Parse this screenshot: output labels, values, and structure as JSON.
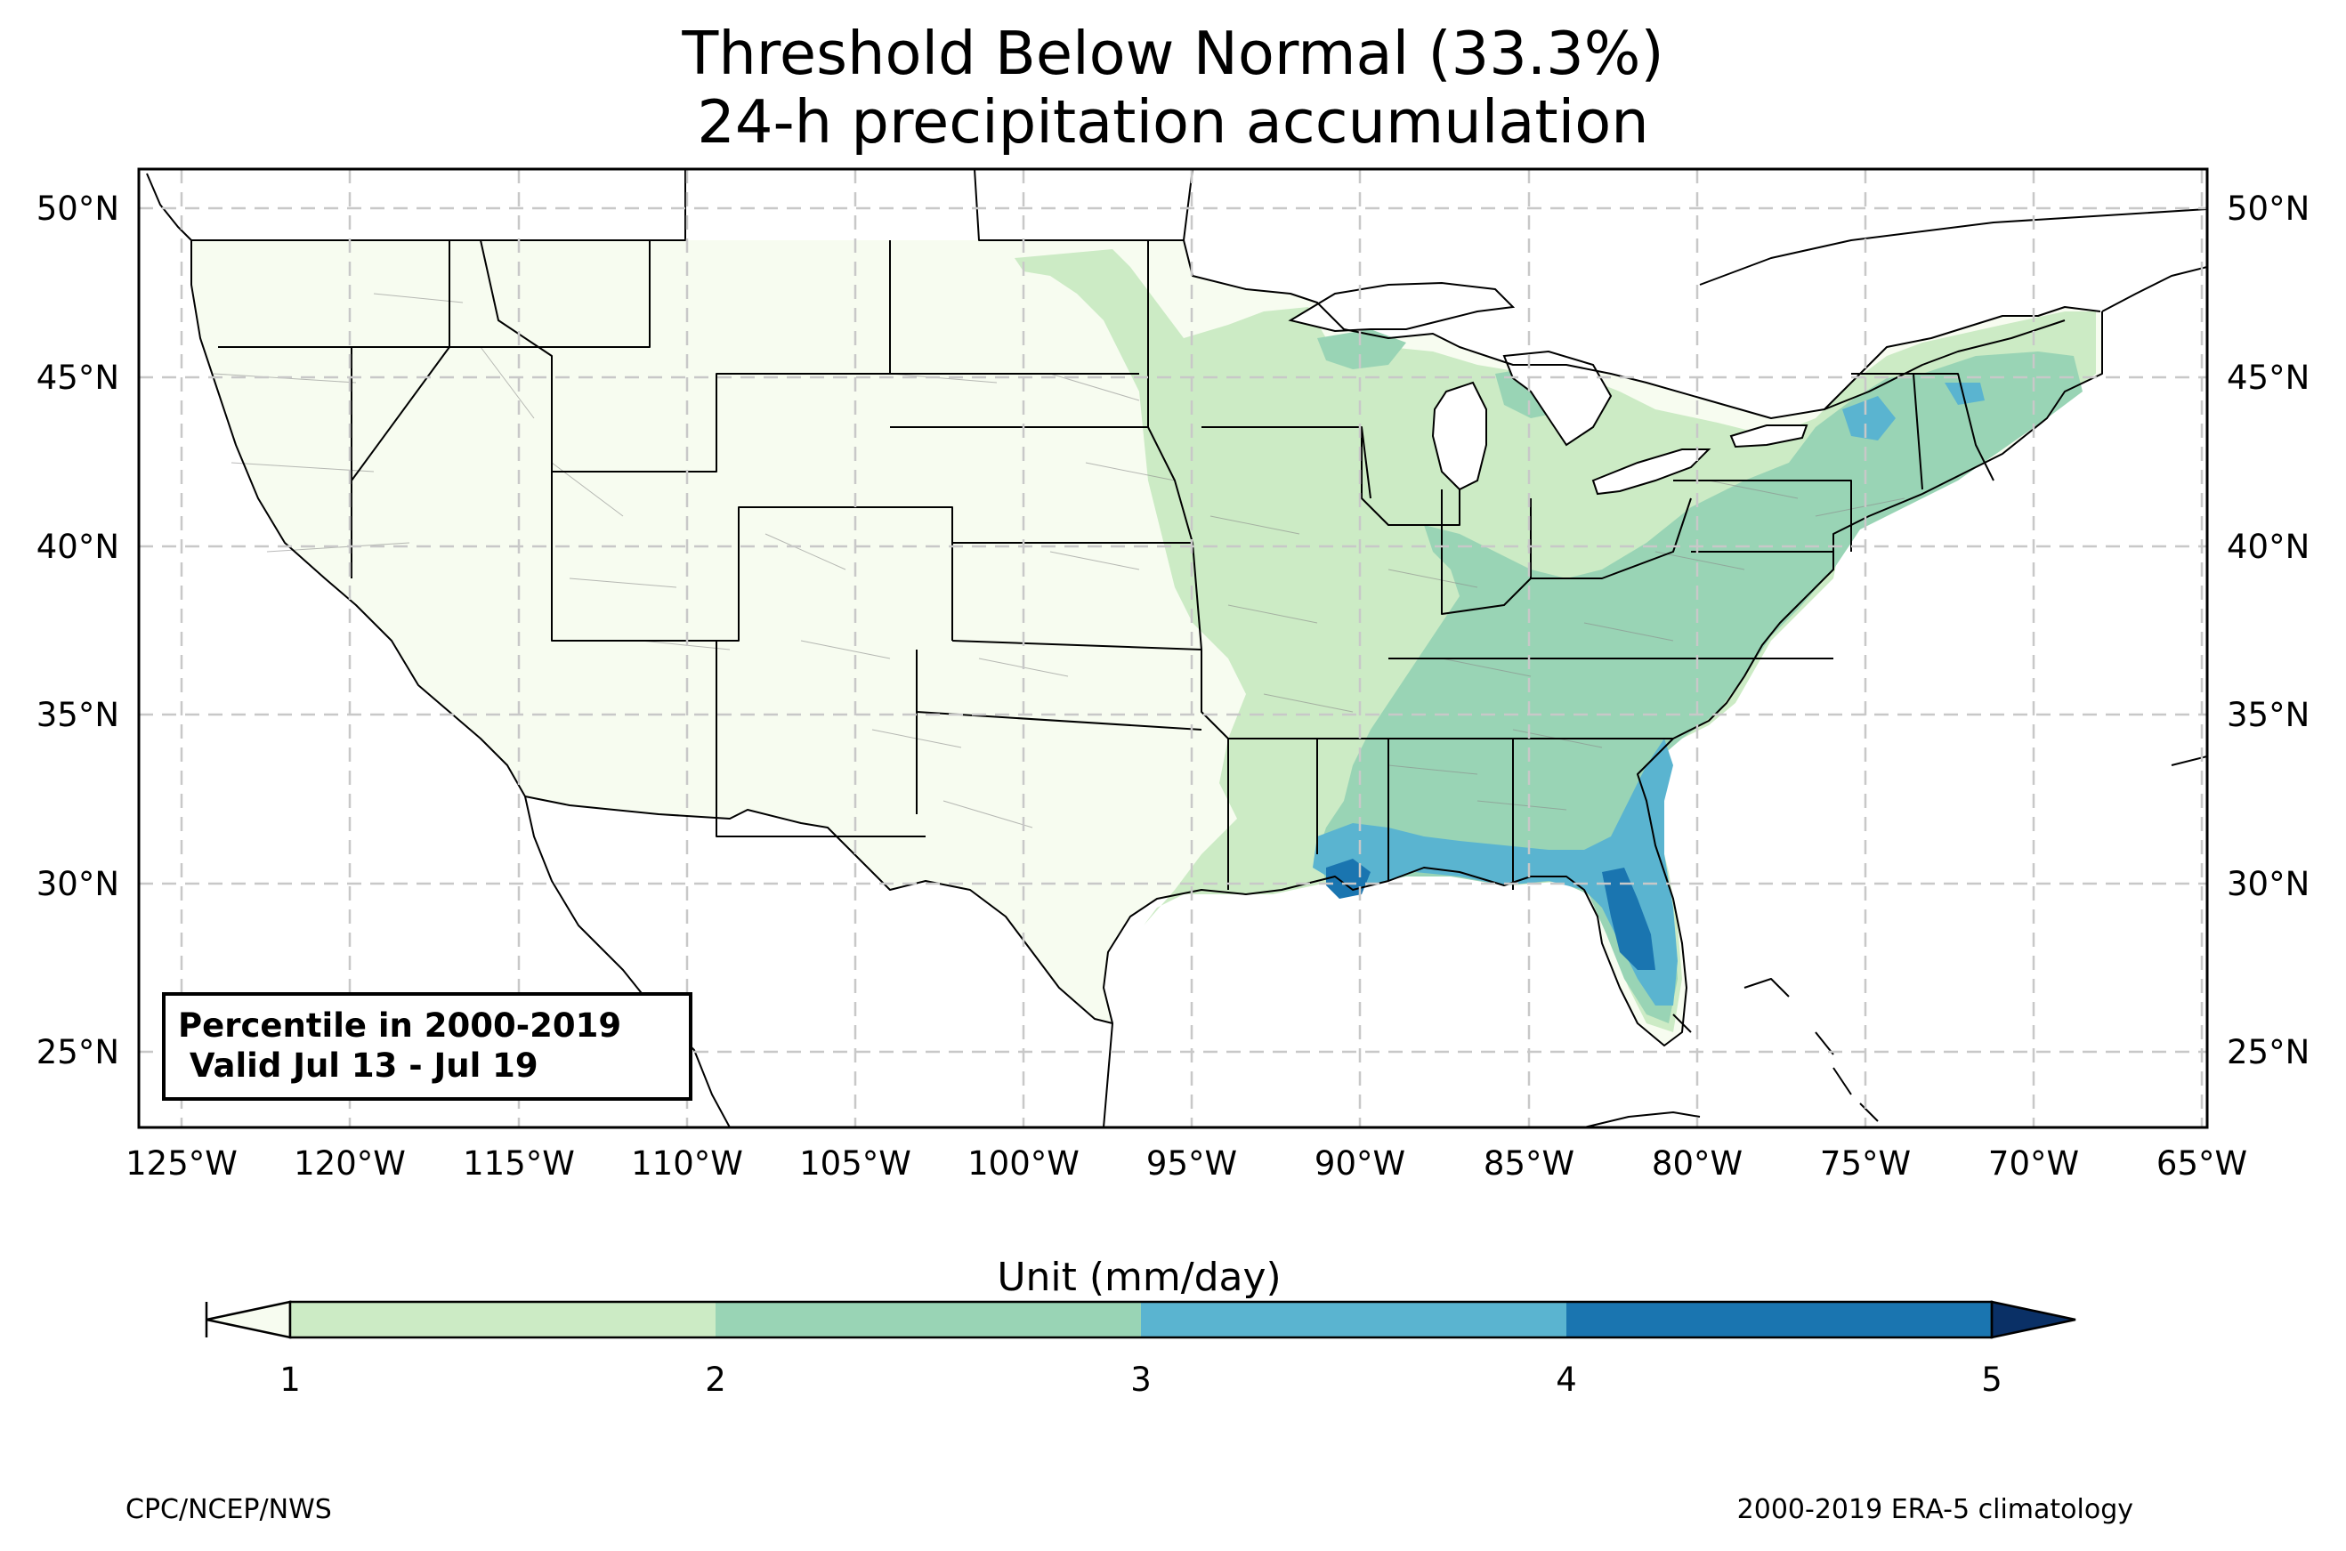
{
  "title_line1": "Threshold Below Normal (33.3%)",
  "title_line2": "24-h precipitation accumulation",
  "map": {
    "lon_range": [
      -126.3,
      -64.9
    ],
    "lat_range": [
      22.8,
      51.2
    ],
    "lon_ticks": [
      "125°W",
      "120°W",
      "115°W",
      "110°W",
      "105°W",
      "100°W",
      "95°W",
      "90°W",
      "85°W",
      "80°W",
      "75°W",
      "70°W",
      "65°W"
    ],
    "lat_ticks": [
      "25°N",
      "30°N",
      "35°N",
      "40°N",
      "45°N",
      "50°N"
    ],
    "land_color": "#f7fcf0",
    "ocean_color": "#ffffff"
  },
  "info_box": {
    "line1": "Percentile in 2000-2019",
    "line2": " Valid Jul 13 - Jul 19"
  },
  "colorbar": {
    "label": "Unit (mm/day)",
    "ticks": [
      "1",
      "2",
      "3",
      "4",
      "5"
    ],
    "bins": [
      {
        "range": "<1",
        "color": "#f7fcf0"
      },
      {
        "range": "1-2",
        "color": "#ccebc5"
      },
      {
        "range": "2-3",
        "color": "#99d4b5"
      },
      {
        "range": "3-4",
        "color": "#5ab4d0"
      },
      {
        "range": "4-5",
        "color": "#1a75b0"
      },
      {
        "range": ">5",
        "color": "#0a3066"
      }
    ]
  },
  "credits": {
    "left": "CPC/NCEP/NWS",
    "right": "2000-2019 ERA-5 climatology"
  }
}
